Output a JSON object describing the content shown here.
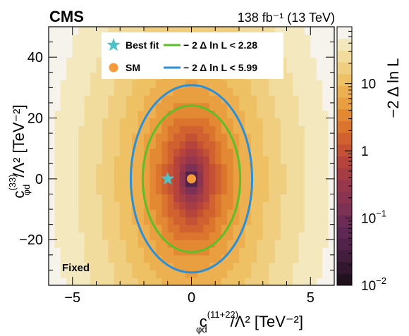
{
  "chart_data": {
    "type": "heatmap",
    "experiment": "CMS",
    "lumi_text": "138 fb⁻¹ (13 TeV)",
    "xlabel": {
      "base": "c",
      "sub": "φd",
      "sup": "(11+22)",
      "tail": "/Λ² [TeV⁻²]"
    },
    "ylabel": {
      "base": "c",
      "sub": "φd",
      "sup": "(33)",
      "tail": "/Λ² [TeV⁻²]"
    },
    "zlabel": "−2 Δ ln L",
    "xlim": [
      -6,
      6
    ],
    "ylim": [
      -35,
      50
    ],
    "zlim": [
      0.01,
      70
    ],
    "z_scale": "log",
    "xticks": [
      {
        "value": -5,
        "label": "−5"
      },
      {
        "value": 0,
        "label": "0"
      },
      {
        "value": 5,
        "label": "5"
      }
    ],
    "yticks": [
      {
        "value": -20,
        "label": "−20"
      },
      {
        "value": 0,
        "label": "0"
      },
      {
        "value": 20,
        "label": "20"
      },
      {
        "value": 40,
        "label": "40"
      }
    ],
    "zticks": [
      {
        "value": 0.01,
        "label": "10",
        "exp": "−2"
      },
      {
        "value": 0.1,
        "label": "10",
        "exp": "−1"
      },
      {
        "value": 1,
        "label": "1",
        "exp": ""
      },
      {
        "value": 10,
        "label": "10",
        "exp": ""
      }
    ],
    "model": {
      "sigma_x": 0.85,
      "sigma_y": 12.6,
      "x0": 0,
      "y0": 0
    },
    "best_fit": {
      "x": -1.0,
      "y": 0.0,
      "label": "Best fit",
      "color": "#4dc3c8"
    },
    "sm": {
      "x": 0.0,
      "y": 0.0,
      "label": "SM",
      "color": "#f79a3a"
    },
    "contours": [
      {
        "level": 2.28,
        "label": "− 2  Δ  ln L < 2.28",
        "color": "#5ebd2a",
        "a": 2.05,
        "b": 24.1
      },
      {
        "level": 5.99,
        "label": "− 2  Δ  ln L < 5.99",
        "color": "#2a8ed8",
        "a": 2.55,
        "b": 30.8
      }
    ],
    "annotation": "Fixed",
    "grid": false,
    "legend_position": "top"
  }
}
